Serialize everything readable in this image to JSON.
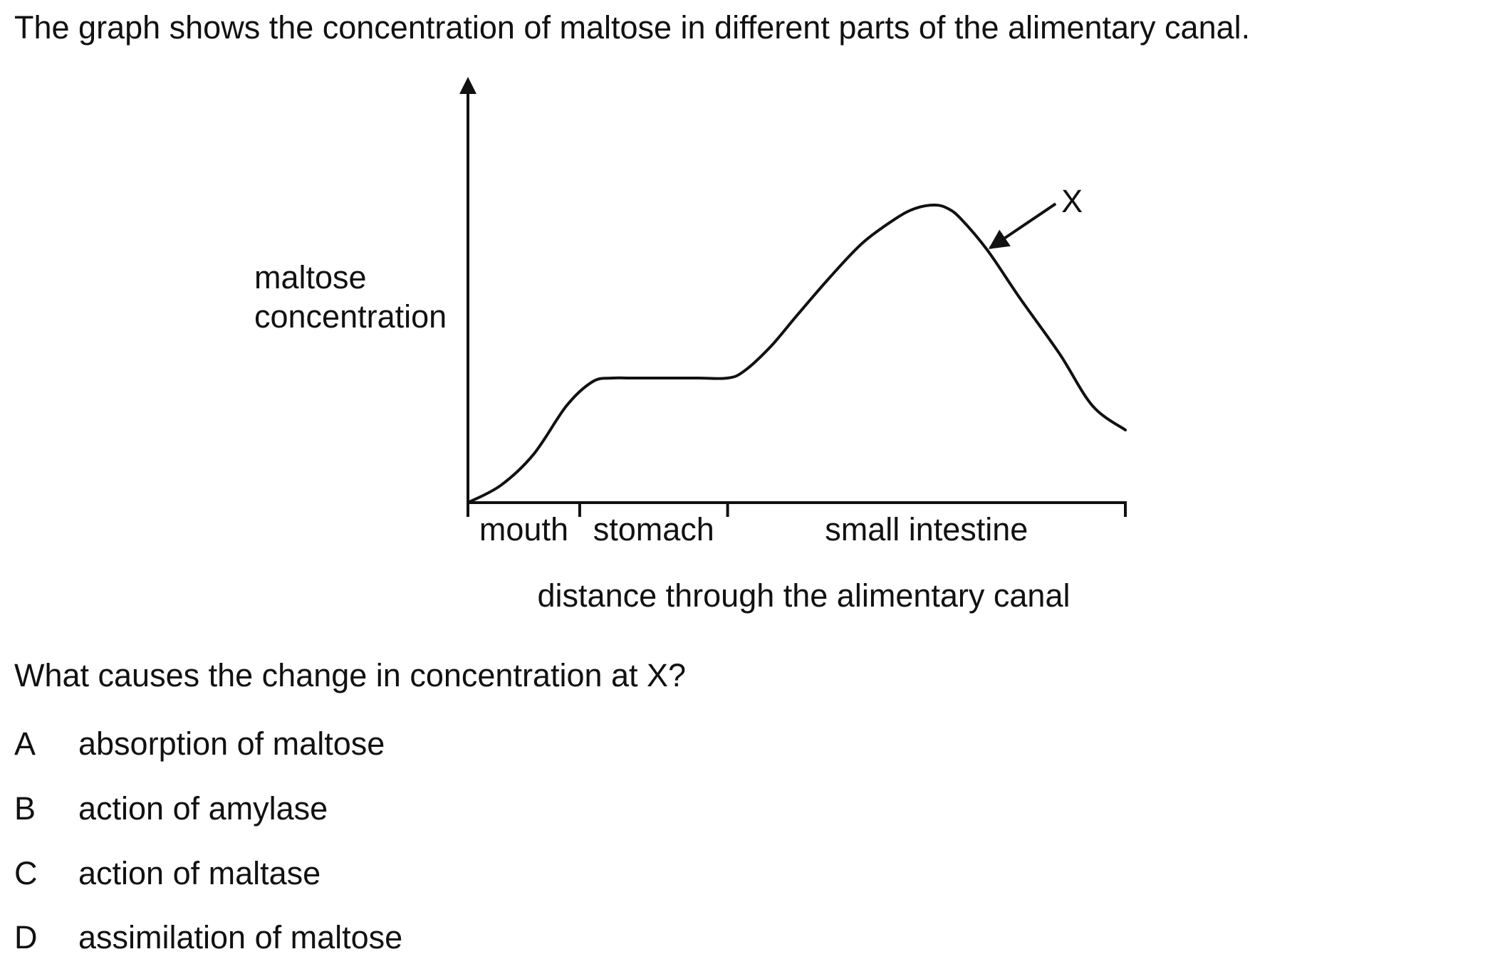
{
  "question": {
    "intro": "The graph shows the concentration of maltose in different parts of the alimentary canal.",
    "prompt": "What causes the change in concentration at X?",
    "options": [
      {
        "letter": "A",
        "text": "absorption of maltose"
      },
      {
        "letter": "B",
        "text": "action of amylase"
      },
      {
        "letter": "C",
        "text": "action of maltase"
      },
      {
        "letter": "D",
        "text": "assimilation of maltose"
      }
    ]
  },
  "chart_data": {
    "type": "line",
    "title": "",
    "ylabel_lines": [
      "maltose",
      "concentration"
    ],
    "xlabel": "distance through the alimentary canal",
    "regions": [
      "mouth",
      "stomach",
      "small intestine"
    ],
    "region_bounds": [
      0,
      0.17,
      0.395,
      1.0
    ],
    "annotation": {
      "label": "X",
      "x": 0.79,
      "y": 0.73
    },
    "series": [
      {
        "x": [
          0,
          0.05,
          0.1,
          0.15,
          0.19,
          0.22,
          0.25,
          0.3,
          0.35,
          0.395,
          0.42,
          0.46,
          0.5,
          0.55,
          0.6,
          0.65,
          0.68,
          0.71,
          0.73,
          0.75,
          0.79,
          0.84,
          0.9,
          0.95,
          1.0
        ],
        "y": [
          0,
          0.05,
          0.14,
          0.28,
          0.35,
          0.36,
          0.36,
          0.36,
          0.36,
          0.36,
          0.38,
          0.45,
          0.54,
          0.65,
          0.75,
          0.82,
          0.85,
          0.86,
          0.85,
          0.82,
          0.73,
          0.59,
          0.43,
          0.28,
          0.21
        ]
      }
    ],
    "ylim": [
      0,
      1
    ],
    "xlim": [
      0,
      1
    ],
    "grid": false,
    "legend": "none"
  }
}
